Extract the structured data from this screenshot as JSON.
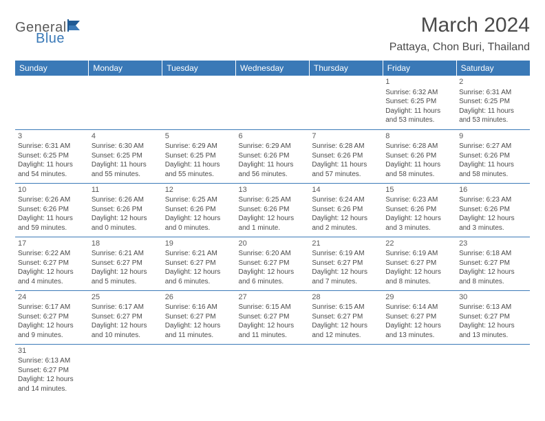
{
  "logo": {
    "part1": "General",
    "part2": "Blue"
  },
  "title": "March 2024",
  "location": "Pattaya, Chon Buri, Thailand",
  "colors": {
    "header_bg": "#3a79b7",
    "row_border": "#3a79b7",
    "text": "#4a4a4a",
    "logo_blue": "#3a79b7"
  },
  "daynames": [
    "Sunday",
    "Monday",
    "Tuesday",
    "Wednesday",
    "Thursday",
    "Friday",
    "Saturday"
  ],
  "weeks": [
    [
      null,
      null,
      null,
      null,
      null,
      {
        "n": "1",
        "sr": "Sunrise: 6:32 AM",
        "ss": "Sunset: 6:25 PM",
        "d1": "Daylight: 11 hours",
        "d2": "and 53 minutes."
      },
      {
        "n": "2",
        "sr": "Sunrise: 6:31 AM",
        "ss": "Sunset: 6:25 PM",
        "d1": "Daylight: 11 hours",
        "d2": "and 53 minutes."
      }
    ],
    [
      {
        "n": "3",
        "sr": "Sunrise: 6:31 AM",
        "ss": "Sunset: 6:25 PM",
        "d1": "Daylight: 11 hours",
        "d2": "and 54 minutes."
      },
      {
        "n": "4",
        "sr": "Sunrise: 6:30 AM",
        "ss": "Sunset: 6:25 PM",
        "d1": "Daylight: 11 hours",
        "d2": "and 55 minutes."
      },
      {
        "n": "5",
        "sr": "Sunrise: 6:29 AM",
        "ss": "Sunset: 6:25 PM",
        "d1": "Daylight: 11 hours",
        "d2": "and 55 minutes."
      },
      {
        "n": "6",
        "sr": "Sunrise: 6:29 AM",
        "ss": "Sunset: 6:26 PM",
        "d1": "Daylight: 11 hours",
        "d2": "and 56 minutes."
      },
      {
        "n": "7",
        "sr": "Sunrise: 6:28 AM",
        "ss": "Sunset: 6:26 PM",
        "d1": "Daylight: 11 hours",
        "d2": "and 57 minutes."
      },
      {
        "n": "8",
        "sr": "Sunrise: 6:28 AM",
        "ss": "Sunset: 6:26 PM",
        "d1": "Daylight: 11 hours",
        "d2": "and 58 minutes."
      },
      {
        "n": "9",
        "sr": "Sunrise: 6:27 AM",
        "ss": "Sunset: 6:26 PM",
        "d1": "Daylight: 11 hours",
        "d2": "and 58 minutes."
      }
    ],
    [
      {
        "n": "10",
        "sr": "Sunrise: 6:26 AM",
        "ss": "Sunset: 6:26 PM",
        "d1": "Daylight: 11 hours",
        "d2": "and 59 minutes."
      },
      {
        "n": "11",
        "sr": "Sunrise: 6:26 AM",
        "ss": "Sunset: 6:26 PM",
        "d1": "Daylight: 12 hours",
        "d2": "and 0 minutes."
      },
      {
        "n": "12",
        "sr": "Sunrise: 6:25 AM",
        "ss": "Sunset: 6:26 PM",
        "d1": "Daylight: 12 hours",
        "d2": "and 0 minutes."
      },
      {
        "n": "13",
        "sr": "Sunrise: 6:25 AM",
        "ss": "Sunset: 6:26 PM",
        "d1": "Daylight: 12 hours",
        "d2": "and 1 minute."
      },
      {
        "n": "14",
        "sr": "Sunrise: 6:24 AM",
        "ss": "Sunset: 6:26 PM",
        "d1": "Daylight: 12 hours",
        "d2": "and 2 minutes."
      },
      {
        "n": "15",
        "sr": "Sunrise: 6:23 AM",
        "ss": "Sunset: 6:26 PM",
        "d1": "Daylight: 12 hours",
        "d2": "and 3 minutes."
      },
      {
        "n": "16",
        "sr": "Sunrise: 6:23 AM",
        "ss": "Sunset: 6:26 PM",
        "d1": "Daylight: 12 hours",
        "d2": "and 3 minutes."
      }
    ],
    [
      {
        "n": "17",
        "sr": "Sunrise: 6:22 AM",
        "ss": "Sunset: 6:27 PM",
        "d1": "Daylight: 12 hours",
        "d2": "and 4 minutes."
      },
      {
        "n": "18",
        "sr": "Sunrise: 6:21 AM",
        "ss": "Sunset: 6:27 PM",
        "d1": "Daylight: 12 hours",
        "d2": "and 5 minutes."
      },
      {
        "n": "19",
        "sr": "Sunrise: 6:21 AM",
        "ss": "Sunset: 6:27 PM",
        "d1": "Daylight: 12 hours",
        "d2": "and 6 minutes."
      },
      {
        "n": "20",
        "sr": "Sunrise: 6:20 AM",
        "ss": "Sunset: 6:27 PM",
        "d1": "Daylight: 12 hours",
        "d2": "and 6 minutes."
      },
      {
        "n": "21",
        "sr": "Sunrise: 6:19 AM",
        "ss": "Sunset: 6:27 PM",
        "d1": "Daylight: 12 hours",
        "d2": "and 7 minutes."
      },
      {
        "n": "22",
        "sr": "Sunrise: 6:19 AM",
        "ss": "Sunset: 6:27 PM",
        "d1": "Daylight: 12 hours",
        "d2": "and 8 minutes."
      },
      {
        "n": "23",
        "sr": "Sunrise: 6:18 AM",
        "ss": "Sunset: 6:27 PM",
        "d1": "Daylight: 12 hours",
        "d2": "and 8 minutes."
      }
    ],
    [
      {
        "n": "24",
        "sr": "Sunrise: 6:17 AM",
        "ss": "Sunset: 6:27 PM",
        "d1": "Daylight: 12 hours",
        "d2": "and 9 minutes."
      },
      {
        "n": "25",
        "sr": "Sunrise: 6:17 AM",
        "ss": "Sunset: 6:27 PM",
        "d1": "Daylight: 12 hours",
        "d2": "and 10 minutes."
      },
      {
        "n": "26",
        "sr": "Sunrise: 6:16 AM",
        "ss": "Sunset: 6:27 PM",
        "d1": "Daylight: 12 hours",
        "d2": "and 11 minutes."
      },
      {
        "n": "27",
        "sr": "Sunrise: 6:15 AM",
        "ss": "Sunset: 6:27 PM",
        "d1": "Daylight: 12 hours",
        "d2": "and 11 minutes."
      },
      {
        "n": "28",
        "sr": "Sunrise: 6:15 AM",
        "ss": "Sunset: 6:27 PM",
        "d1": "Daylight: 12 hours",
        "d2": "and 12 minutes."
      },
      {
        "n": "29",
        "sr": "Sunrise: 6:14 AM",
        "ss": "Sunset: 6:27 PM",
        "d1": "Daylight: 12 hours",
        "d2": "and 13 minutes."
      },
      {
        "n": "30",
        "sr": "Sunrise: 6:13 AM",
        "ss": "Sunset: 6:27 PM",
        "d1": "Daylight: 12 hours",
        "d2": "and 13 minutes."
      }
    ],
    [
      {
        "n": "31",
        "sr": "Sunrise: 6:13 AM",
        "ss": "Sunset: 6:27 PM",
        "d1": "Daylight: 12 hours",
        "d2": "and 14 minutes."
      },
      null,
      null,
      null,
      null,
      null,
      null
    ]
  ]
}
